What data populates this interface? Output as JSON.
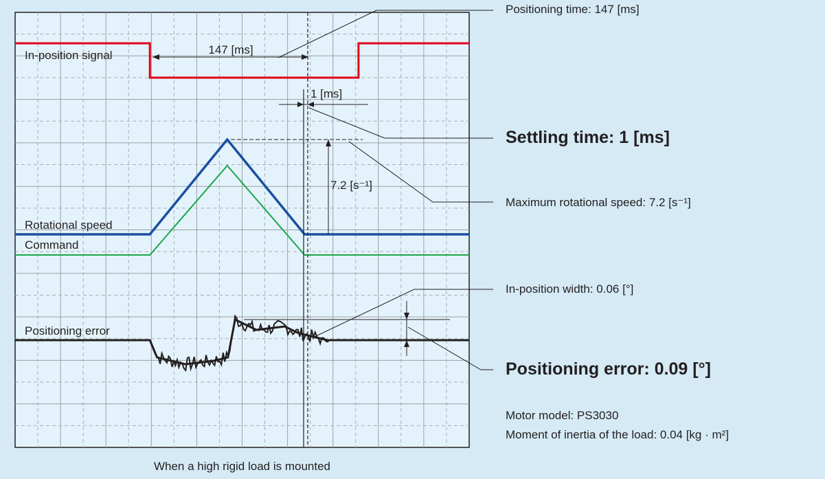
{
  "chart_data": {
    "type": "line",
    "title": "",
    "time_unit": "ms",
    "positioning_time_ms": 147,
    "settling_time_ms": 1,
    "max_rotational_speed_per_s": 7.2,
    "in_position_width_deg": 0.06,
    "positioning_error_deg": 0.09,
    "series": [
      {
        "name": "In-position signal",
        "color": "#e2001a",
        "points": [
          [
            0,
            1
          ],
          [
            95,
            1
          ],
          [
            95,
            0
          ],
          [
            242,
            0
          ],
          [
            242,
            1
          ],
          [
            320,
            1
          ]
        ]
      },
      {
        "name": "Rotational speed",
        "color": "#1a4fa0",
        "points": [
          [
            0,
            0
          ],
          [
            95,
            0
          ],
          [
            149.5,
            7.2
          ],
          [
            204,
            0
          ],
          [
            320,
            0
          ]
        ]
      },
      {
        "name": "Command",
        "color": "#1aa84a",
        "points": [
          [
            0,
            0
          ],
          [
            95,
            0
          ],
          [
            149.5,
            7.2
          ],
          [
            204,
            0
          ],
          [
            320,
            0
          ]
        ]
      },
      {
        "name": "Positioning error",
        "color": "#231f20",
        "points": [
          [
            0,
            0
          ],
          [
            95,
            0
          ],
          [
            100,
            -0.05
          ],
          [
            120,
            -0.07
          ],
          [
            140,
            -0.06
          ],
          [
            150,
            -0.05
          ],
          [
            155,
            0.06
          ],
          [
            170,
            0.03
          ],
          [
            190,
            0.04
          ],
          [
            200,
            0.02
          ],
          [
            210,
            0.01
          ],
          [
            220,
            0
          ],
          [
            320,
            0
          ]
        ]
      }
    ],
    "labels": {
      "signal": "In-position signal",
      "speed": "Rotational speed",
      "command": "Command",
      "error": "Positioning error",
      "positioning_time": "147 [ms]",
      "settling_time": "1 [ms]",
      "max_speed": "7.2 [s⁻¹]"
    },
    "grid": true
  },
  "annotations": {
    "positioning_time": "Positioning time: 147 [ms]",
    "settling_time": "Settling time: 1 [ms]",
    "max_speed": "Maximum rotational speed: 7.2 [s⁻¹]",
    "in_position_width": "In-position width: 0.06 [°]",
    "positioning_error": "Positioning error: 0.09 [°]",
    "motor_model": "Motor model: PS3030",
    "inertia": "Moment of inertia of the load: 0.04 [kg · m²]"
  },
  "caption": "When a high rigid load is mounted"
}
